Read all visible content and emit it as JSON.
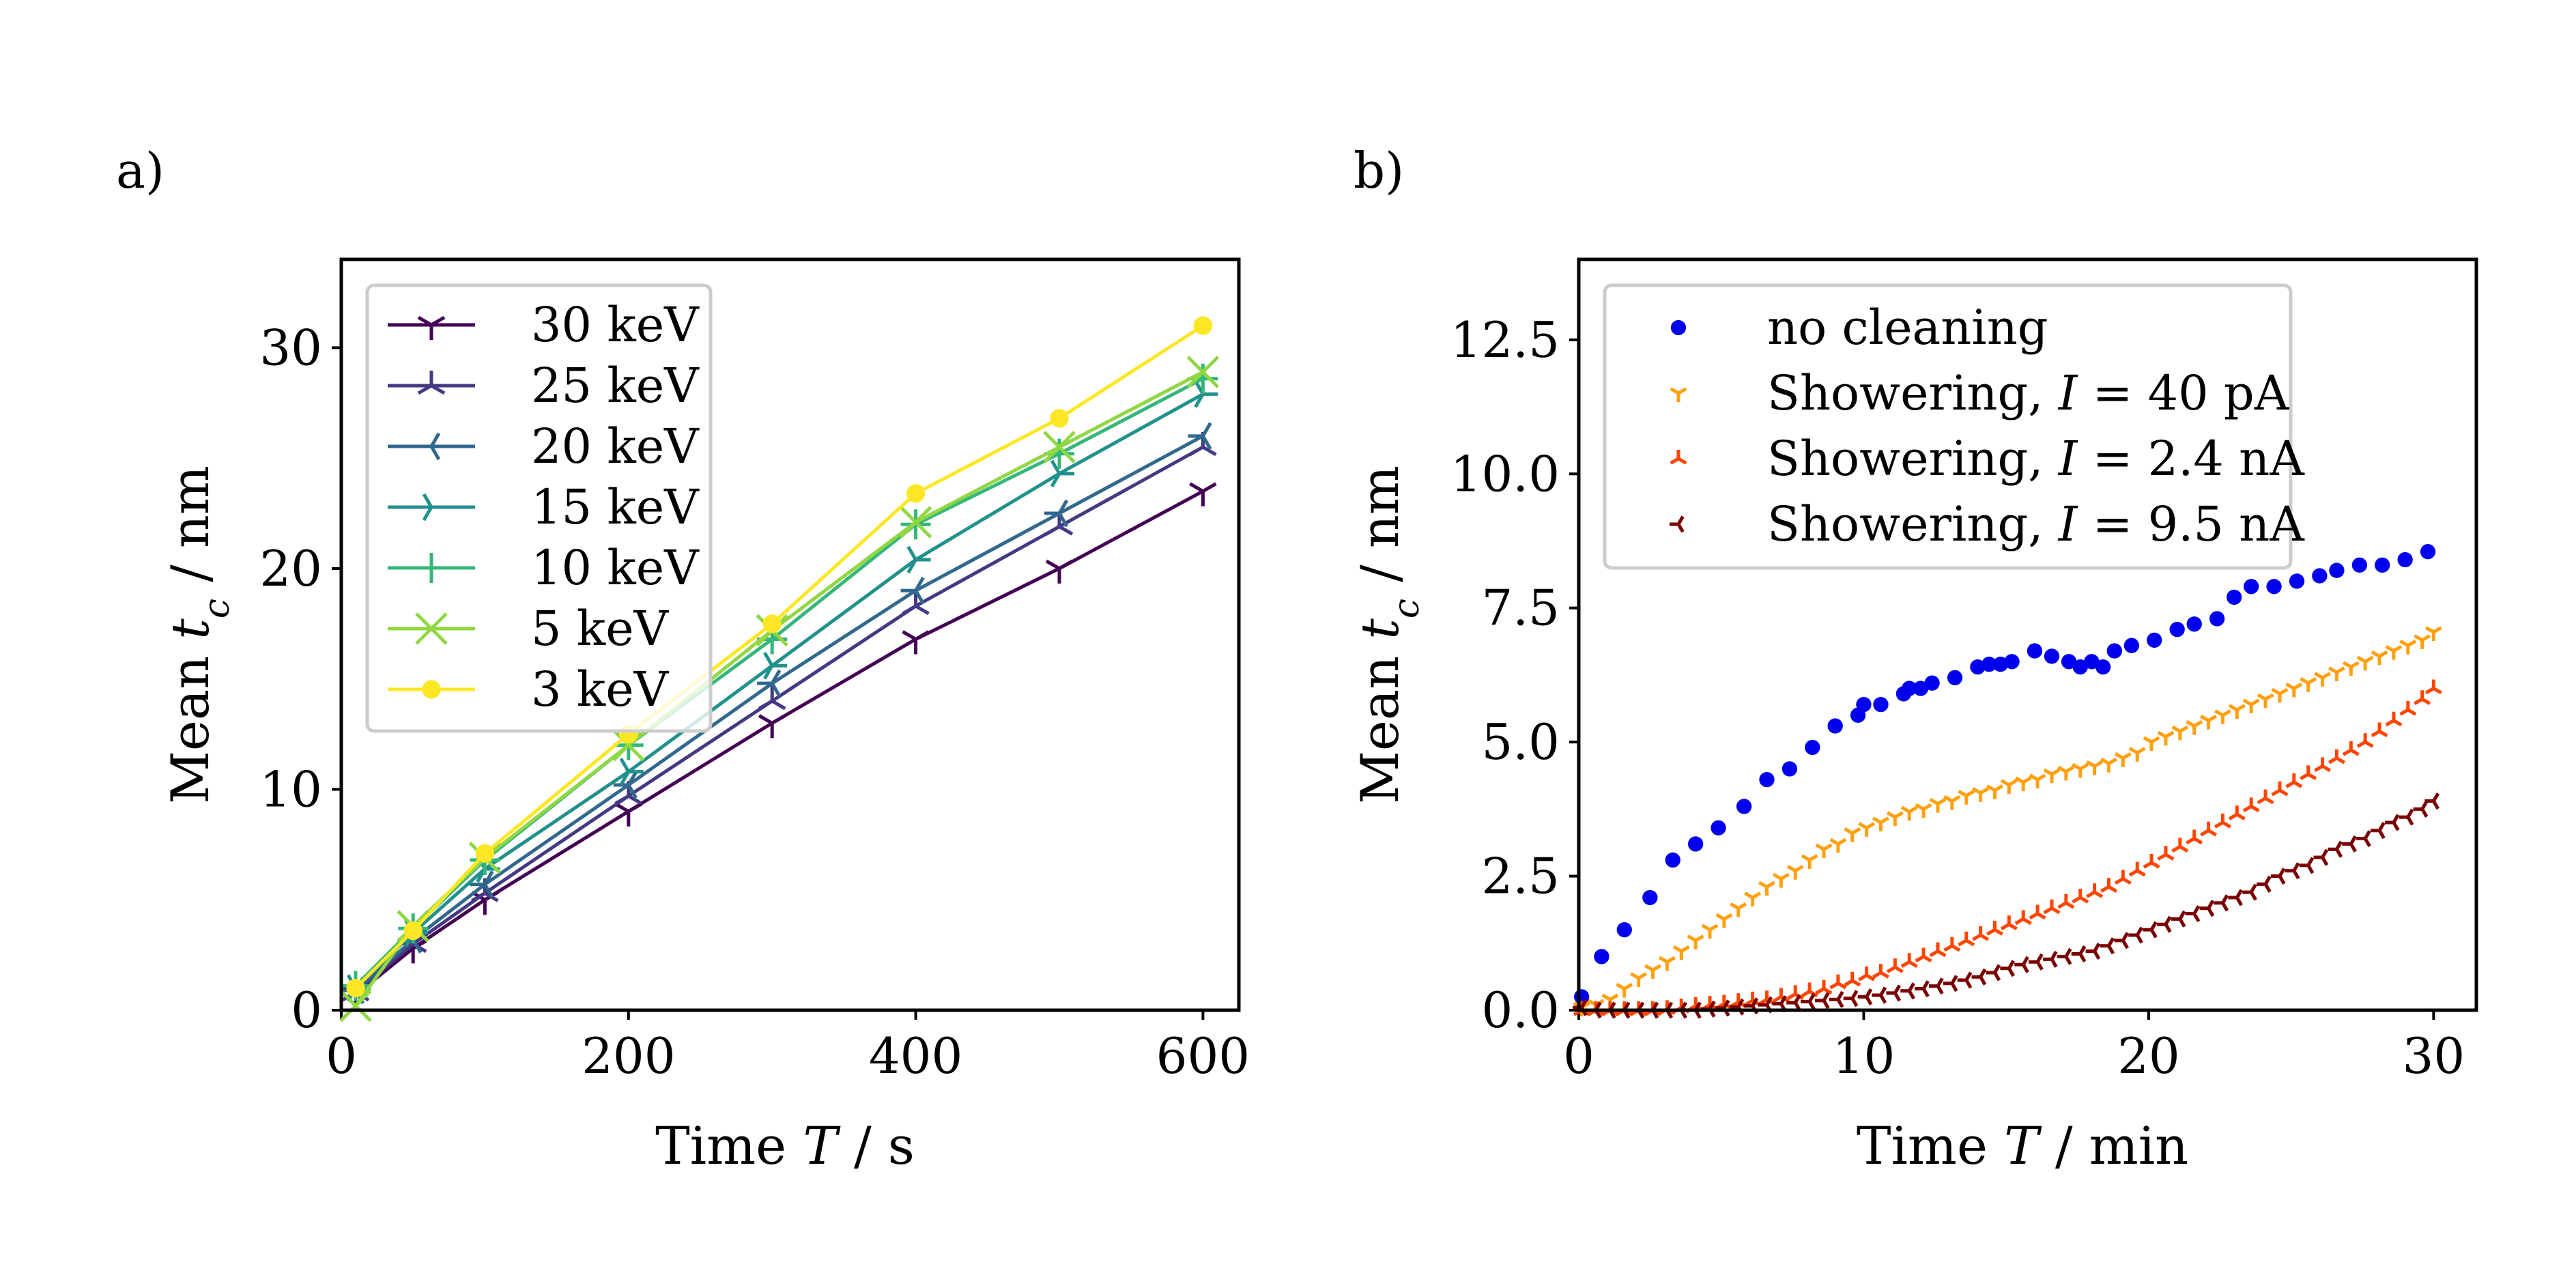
{
  "charts": [
    {
      "panel_label": "a)",
      "xlabel": {
        "prefix": "Time ",
        "symbol": "T",
        "suffix": " / s"
      },
      "ylabel": {
        "prefix": "Mean ",
        "symbol": "t",
        "sub": "c",
        "suffix": " / nm"
      },
      "legend": [
        {
          "label": "30 keV"
        },
        {
          "label": "25 keV"
        },
        {
          "label": "20 keV"
        },
        {
          "label": "15 keV"
        },
        {
          "label": "10 keV"
        },
        {
          "label": "5 keV"
        },
        {
          "label": "3 keV"
        }
      ]
    },
    {
      "panel_label": "b)",
      "xlabel": {
        "prefix": "Time ",
        "symbol": "T",
        "suffix": " / min"
      },
      "ylabel": {
        "prefix": "Mean ",
        "symbol": "t",
        "sub": "c",
        "suffix": " / nm"
      },
      "legend": [
        {
          "label": "no cleaning"
        },
        {
          "prefix": "Showering, ",
          "symbol": "I",
          "eq": " = 40 pA"
        },
        {
          "prefix": "Showering, ",
          "symbol": "I",
          "eq": " = 2.4 nA"
        },
        {
          "prefix": "Showering, ",
          "symbol": "I",
          "eq": " = 9.5 nA"
        }
      ]
    }
  ],
  "chart_data": [
    {
      "type": "line",
      "xlim": [
        0,
        625
      ],
      "ylim": [
        0,
        34
      ],
      "xticks": [
        "0",
        "200",
        "400",
        "600"
      ],
      "yticks": [
        "0",
        "10",
        "20",
        "30"
      ],
      "legend_position": "upper-left",
      "x": [
        10,
        50,
        100,
        200,
        300,
        400,
        500,
        600
      ],
      "series": [
        {
          "name": "30 keV",
          "color": "#440154",
          "marker": "tri-down",
          "values": [
            0.7,
            2.8,
            5.0,
            9.0,
            13.0,
            16.8,
            20.0,
            23.5
          ]
        },
        {
          "name": "25 keV",
          "color": "#443983",
          "marker": "tri-up",
          "values": [
            0.8,
            3.0,
            5.3,
            9.7,
            14.0,
            18.3,
            21.9,
            25.5
          ]
        },
        {
          "name": "20 keV",
          "color": "#31688e",
          "marker": "tri-left",
          "values": [
            0.9,
            3.2,
            5.7,
            10.2,
            14.8,
            19.0,
            22.5,
            26.0
          ]
        },
        {
          "name": "15 keV",
          "color": "#21918c",
          "marker": "tri-right",
          "values": [
            1.0,
            3.5,
            6.4,
            10.8,
            15.6,
            20.4,
            24.3,
            27.9
          ]
        },
        {
          "name": "10 keV",
          "color": "#35b779",
          "marker": "plus",
          "values": [
            1.1,
            3.7,
            6.8,
            12.0,
            16.8,
            22.0,
            25.2,
            28.6
          ]
        },
        {
          "name": "5 keV",
          "color": "#90d743",
          "marker": "x",
          "values": [
            0.2,
            3.8,
            6.9,
            12.0,
            17.2,
            22.1,
            25.5,
            28.9
          ]
        },
        {
          "name": "3 keV",
          "color": "#fde725",
          "marker": "circle",
          "values": [
            1.0,
            3.6,
            7.1,
            12.5,
            17.5,
            23.4,
            26.8,
            31.0
          ]
        }
      ]
    },
    {
      "type": "scatter",
      "xlim": [
        0,
        31.5
      ],
      "ylim": [
        0,
        14
      ],
      "xticks": [
        "0",
        "10",
        "20",
        "30"
      ],
      "yticks": [
        "0.0",
        "2.5",
        "5.0",
        "7.5",
        "10.0",
        "12.5"
      ],
      "legend_position": "upper-left",
      "series": [
        {
          "name": "no cleaning",
          "color": "#0000ee",
          "marker": "circle",
          "x": [
            0.1,
            0.8,
            1.6,
            2.5,
            3.3,
            4.1,
            4.9,
            5.8,
            6.6,
            7.4,
            8.2,
            9.0,
            9.8,
            10.0,
            10.6,
            11.4,
            11.6,
            12.0,
            12.4,
            13.2,
            14.0,
            14.4,
            14.8,
            15.2,
            16.0,
            16.6,
            17.2,
            17.6,
            18.0,
            18.4,
            18.8,
            19.4,
            20.2,
            21.0,
            21.6,
            22.4,
            23.0,
            23.6,
            24.4,
            25.2,
            26.0,
            26.6,
            27.4,
            28.2,
            29.0,
            29.8
          ],
          "y": [
            0.25,
            1.0,
            1.5,
            2.1,
            2.8,
            3.1,
            3.4,
            3.8,
            4.3,
            4.5,
            4.9,
            5.3,
            5.5,
            5.7,
            5.7,
            5.9,
            6.0,
            6.0,
            6.1,
            6.2,
            6.4,
            6.45,
            6.45,
            6.5,
            6.7,
            6.6,
            6.5,
            6.4,
            6.5,
            6.4,
            6.7,
            6.8,
            6.9,
            7.1,
            7.2,
            7.3,
            7.7,
            7.9,
            7.9,
            8.0,
            8.1,
            8.2,
            8.3,
            8.3,
            8.4,
            8.55
          ]
        },
        {
          "name": "Showering, I = 40 pA",
          "color": "#ffa010",
          "marker": "tri-down",
          "x": [
            0.1,
            0.6,
            1.1,
            1.6,
            2.1,
            2.6,
            3.1,
            3.6,
            4.1,
            4.6,
            5.1,
            5.6,
            6.1,
            6.6,
            7.1,
            7.6,
            8.1,
            8.6,
            9.1,
            9.6,
            10.1,
            10.6,
            11.1,
            11.6,
            12.1,
            12.6,
            13.1,
            13.6,
            14.1,
            14.6,
            15.1,
            15.6,
            16.1,
            16.6,
            17.1,
            17.6,
            18.1,
            18.6,
            19.1,
            19.6,
            20.1,
            20.6,
            21.1,
            21.6,
            22.1,
            22.6,
            23.1,
            23.6,
            24.1,
            24.6,
            25.1,
            25.6,
            26.1,
            26.6,
            27.1,
            27.6,
            28.1,
            28.6,
            29.1,
            29.6,
            30.0
          ],
          "y": [
            0.05,
            0.1,
            0.2,
            0.4,
            0.6,
            0.75,
            0.9,
            1.1,
            1.3,
            1.5,
            1.7,
            1.9,
            2.1,
            2.3,
            2.45,
            2.6,
            2.8,
            3.0,
            3.1,
            3.3,
            3.4,
            3.5,
            3.6,
            3.7,
            3.75,
            3.85,
            3.9,
            4.0,
            4.05,
            4.1,
            4.2,
            4.25,
            4.3,
            4.4,
            4.45,
            4.5,
            4.55,
            4.6,
            4.7,
            4.8,
            5.0,
            5.1,
            5.2,
            5.3,
            5.4,
            5.5,
            5.6,
            5.7,
            5.8,
            5.9,
            6.0,
            6.1,
            6.2,
            6.3,
            6.4,
            6.5,
            6.6,
            6.7,
            6.8,
            6.9,
            7.05
          ]
        },
        {
          "name": "Showering, I = 2.4 nA",
          "color": "#ff4500",
          "marker": "tri-up",
          "x": [
            0.1,
            0.6,
            1.1,
            1.6,
            2.1,
            2.6,
            3.1,
            3.6,
            4.1,
            4.6,
            5.1,
            5.6,
            6.1,
            6.6,
            7.1,
            7.6,
            8.1,
            8.6,
            9.1,
            9.6,
            10.1,
            10.6,
            11.1,
            11.6,
            12.1,
            12.6,
            13.1,
            13.6,
            14.1,
            14.6,
            15.1,
            15.6,
            16.1,
            16.6,
            17.1,
            17.6,
            18.1,
            18.6,
            19.1,
            19.6,
            20.1,
            20.6,
            21.1,
            21.6,
            22.1,
            22.6,
            23.1,
            23.6,
            24.1,
            24.6,
            25.1,
            25.6,
            26.1,
            26.6,
            27.1,
            27.6,
            28.1,
            28.6,
            29.1,
            29.6,
            30.0
          ],
          "y": [
            0.0,
            0.0,
            0.0,
            0.0,
            0.0,
            0.0,
            0.02,
            0.05,
            0.08,
            0.1,
            0.12,
            0.15,
            0.18,
            0.2,
            0.25,
            0.3,
            0.35,
            0.4,
            0.5,
            0.55,
            0.65,
            0.7,
            0.8,
            0.9,
            1.0,
            1.1,
            1.2,
            1.3,
            1.4,
            1.5,
            1.6,
            1.7,
            1.8,
            1.9,
            2.0,
            2.1,
            2.2,
            2.3,
            2.45,
            2.6,
            2.75,
            2.9,
            3.05,
            3.2,
            3.35,
            3.5,
            3.65,
            3.8,
            3.95,
            4.1,
            4.25,
            4.4,
            4.55,
            4.7,
            4.85,
            5.0,
            5.2,
            5.4,
            5.6,
            5.8,
            6.0
          ]
        },
        {
          "name": "Showering, I = 9.5 nA",
          "color": "#7a0000",
          "marker": "tri-left",
          "x": [
            0.1,
            0.6,
            1.1,
            1.6,
            2.1,
            2.6,
            3.1,
            3.6,
            4.1,
            4.6,
            5.1,
            5.6,
            6.1,
            6.6,
            7.1,
            7.6,
            8.1,
            8.6,
            9.1,
            9.6,
            10.1,
            10.6,
            11.1,
            11.6,
            12.1,
            12.6,
            13.1,
            13.6,
            14.1,
            14.6,
            15.1,
            15.6,
            16.1,
            16.6,
            17.1,
            17.6,
            18.1,
            18.6,
            19.1,
            19.6,
            20.1,
            20.6,
            21.1,
            21.6,
            22.1,
            22.6,
            23.1,
            23.6,
            24.1,
            24.6,
            25.1,
            25.6,
            26.1,
            26.6,
            27.1,
            27.6,
            28.1,
            28.6,
            29.1,
            29.6,
            30.0
          ],
          "y": [
            0.05,
            0.0,
            0.0,
            0.0,
            0.0,
            0.0,
            0.0,
            0.0,
            0.0,
            0.02,
            0.04,
            0.06,
            0.08,
            0.1,
            0.12,
            0.14,
            0.16,
            0.18,
            0.2,
            0.22,
            0.25,
            0.28,
            0.32,
            0.36,
            0.4,
            0.45,
            0.5,
            0.56,
            0.62,
            0.7,
            0.78,
            0.85,
            0.9,
            0.95,
            1.0,
            1.05,
            1.1,
            1.2,
            1.3,
            1.4,
            1.5,
            1.6,
            1.7,
            1.8,
            1.9,
            2.0,
            2.1,
            2.2,
            2.35,
            2.5,
            2.6,
            2.7,
            2.85,
            3.0,
            3.1,
            3.2,
            3.35,
            3.5,
            3.6,
            3.75,
            3.9
          ]
        }
      ]
    }
  ]
}
